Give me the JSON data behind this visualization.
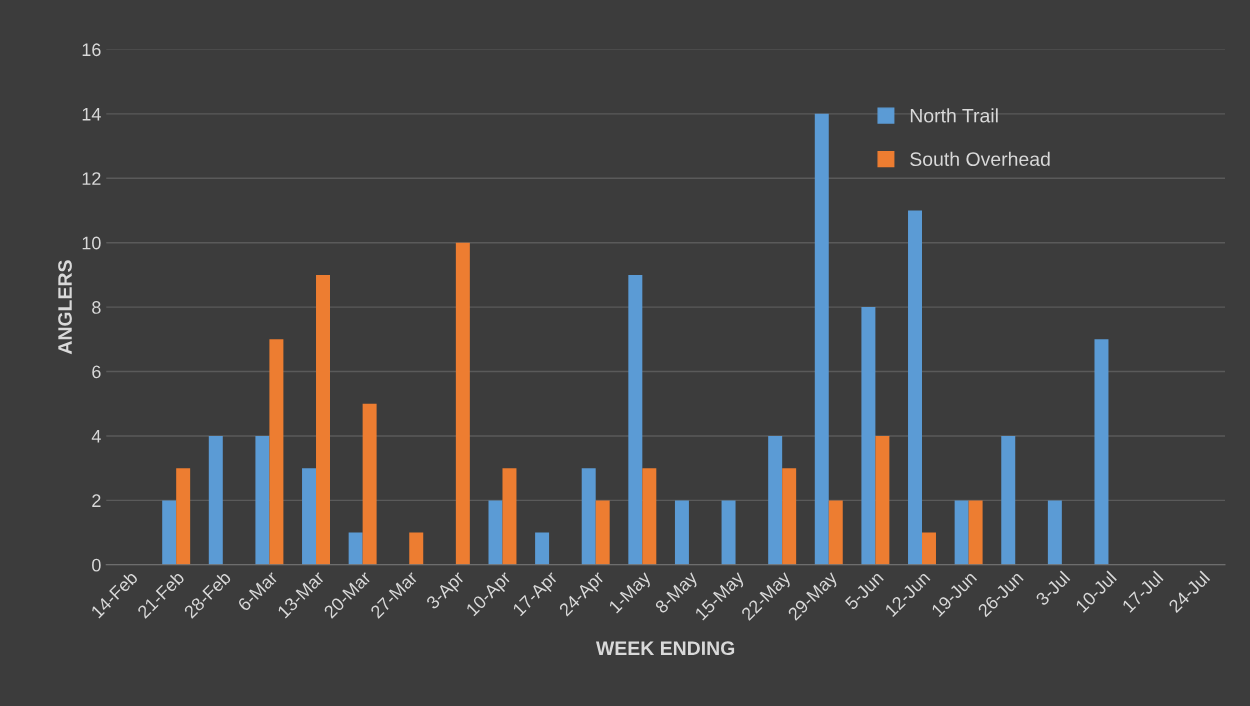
{
  "chart_data": {
    "type": "bar",
    "xlabel": "WEEK ENDING",
    "ylabel": "ANGLERS",
    "categories": [
      "14-Feb",
      "21-Feb",
      "28-Feb",
      "6-Mar",
      "13-Mar",
      "20-Mar",
      "27-Mar",
      "3-Apr",
      "10-Apr",
      "17-Apr",
      "24-Apr",
      "1-May",
      "8-May",
      "15-May",
      "22-May",
      "29-May",
      "5-Jun",
      "12-Jun",
      "19-Jun",
      "26-Jun",
      "3-Jul",
      "10-Jul",
      "17-Jul",
      "24-Jul"
    ],
    "series": [
      {
        "name": "North Trail",
        "color": "#5b9bd5",
        "values": [
          0,
          2,
          4,
          4,
          3,
          1,
          0,
          0,
          2,
          1,
          3,
          9,
          2,
          2,
          4,
          14,
          8,
          11,
          2,
          4,
          2,
          7,
          0,
          0
        ]
      },
      {
        "name": "South Overhead",
        "color": "#ed7d31",
        "values": [
          0,
          3,
          0,
          7,
          9,
          5,
          1,
          10,
          3,
          0,
          2,
          3,
          0,
          0,
          3,
          2,
          4,
          1,
          2,
          0,
          0,
          0,
          0,
          0
        ]
      }
    ],
    "ylim": [
      0,
      16
    ],
    "yticks": [
      0,
      2,
      4,
      6,
      8,
      10,
      12,
      14,
      16
    ],
    "grid": "y",
    "legend": "top right"
  }
}
